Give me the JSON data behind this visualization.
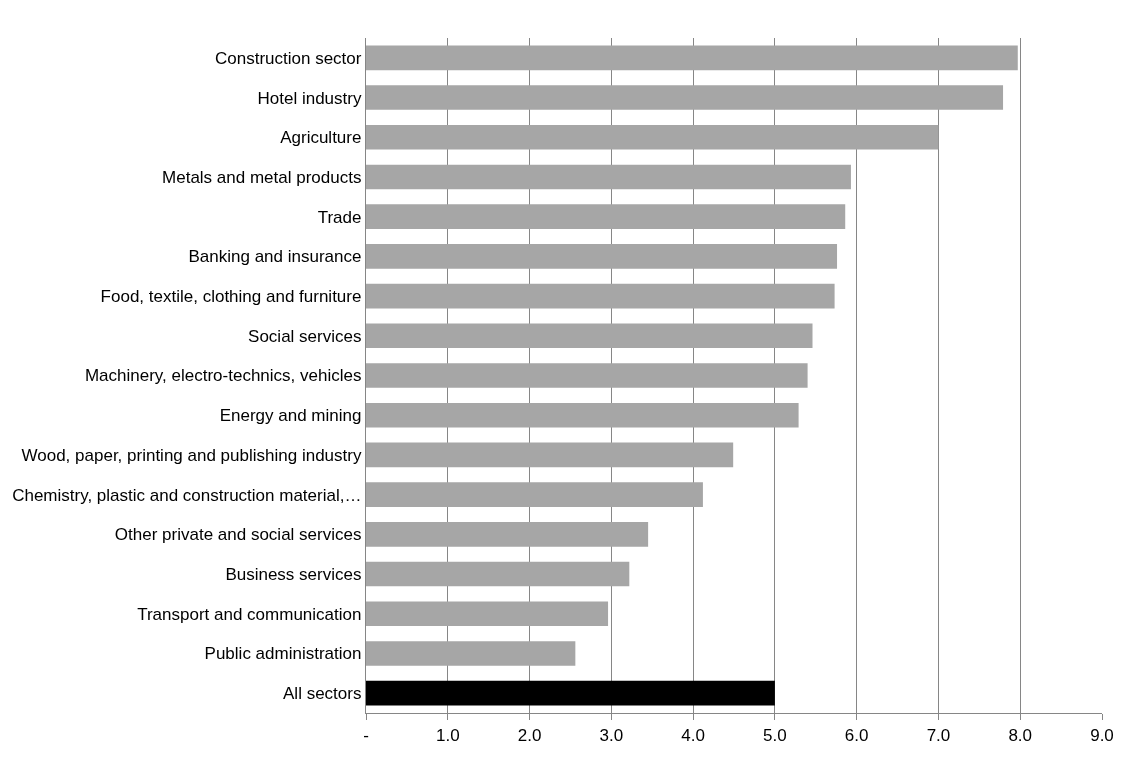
{
  "chart_data": {
    "type": "bar",
    "orientation": "horizontal",
    "categories": [
      "Construction sector",
      "Hotel industry",
      "Agriculture",
      "Metals and metal products",
      "Trade",
      "Banking and insurance",
      "Food, textile, clothing and furniture",
      "Social services",
      "Machinery, electro-technics, vehicles",
      "Energy and mining",
      "Wood, paper, printing and publishing industry",
      "Chemistry, plastic and construction material,…",
      "Other private and social services",
      "Business services",
      "Transport and communication",
      "Public administration",
      "All sectors"
    ],
    "values": [
      7.97,
      7.79,
      7.0,
      5.93,
      5.86,
      5.76,
      5.73,
      5.46,
      5.4,
      5.29,
      4.49,
      4.12,
      3.45,
      3.22,
      2.96,
      2.56,
      5.0
    ],
    "colors": [
      "#a6a6a6",
      "#a6a6a6",
      "#a6a6a6",
      "#a6a6a6",
      "#a6a6a6",
      "#a6a6a6",
      "#a6a6a6",
      "#a6a6a6",
      "#a6a6a6",
      "#a6a6a6",
      "#a6a6a6",
      "#a6a6a6",
      "#a6a6a6",
      "#a6a6a6",
      "#a6a6a6",
      "#a6a6a6",
      "#000000"
    ],
    "xlim": [
      0,
      9
    ],
    "xticks": [
      {
        "value": 0,
        "label": "-"
      },
      {
        "value": 1,
        "label": "1.0"
      },
      {
        "value": 2,
        "label": "2.0"
      },
      {
        "value": 3,
        "label": "3.0"
      },
      {
        "value": 4,
        "label": "4.0"
      },
      {
        "value": 5,
        "label": "5.0"
      },
      {
        "value": 6,
        "label": "6.0"
      },
      {
        "value": 7,
        "label": "7.0"
      },
      {
        "value": 8,
        "label": "8.0"
      },
      {
        "value": 9,
        "label": "9.0"
      }
    ],
    "grid": "x"
  }
}
